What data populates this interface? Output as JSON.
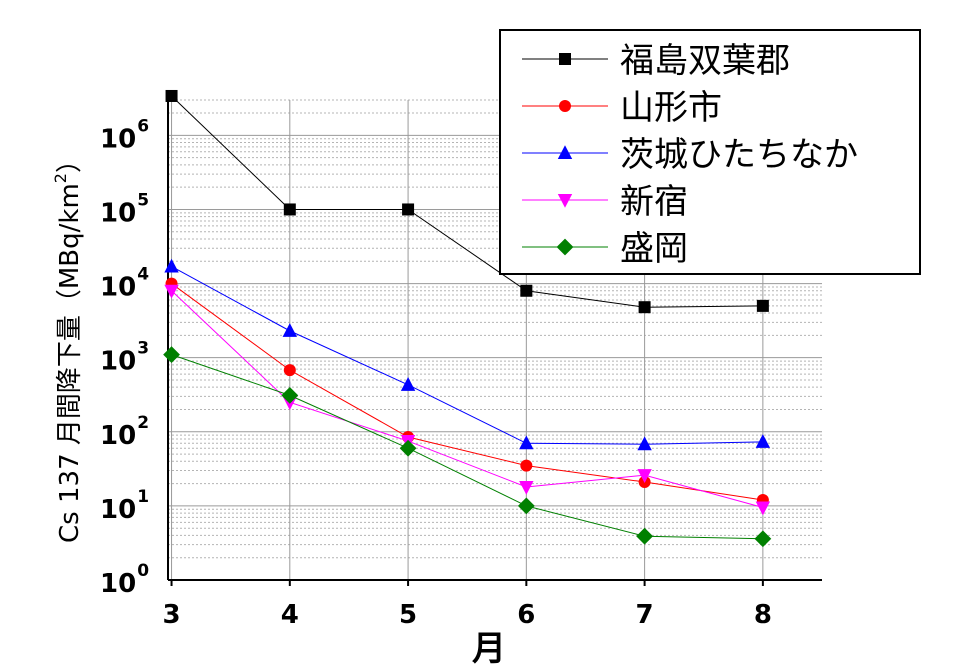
{
  "chart_data": {
    "type": "line",
    "xlabel": "月",
    "ylabel": "Cs 137 月間降下量",
    "ylabel_unit": "（MBq/km",
    "ylabel_unit_sup": "2",
    "ylabel_unit_close": "）",
    "yscale": "log",
    "ylim": [
      1,
      3000000
    ],
    "xlim": [
      2.97,
      8.5
    ],
    "x_ticks": [
      3,
      4,
      5,
      6,
      7,
      8
    ],
    "y_ticks": [
      {
        "base": "10",
        "exp": "0",
        "value": 1
      },
      {
        "base": "10",
        "exp": "1",
        "value": 10
      },
      {
        "base": "10",
        "exp": "2",
        "value": 100
      },
      {
        "base": "10",
        "exp": "3",
        "value": 1000
      },
      {
        "base": "10",
        "exp": "4",
        "value": 10000
      },
      {
        "base": "10",
        "exp": "5",
        "value": 100000
      },
      {
        "base": "10",
        "exp": "6",
        "value": 1000000
      }
    ],
    "grid": true,
    "legend_position": "top-right",
    "series": [
      {
        "name": "福島双葉郡",
        "color": "#000000",
        "marker": "square",
        "x": [
          3,
          4,
          5,
          6,
          7,
          8
        ],
        "values": [
          3400000,
          100000,
          100000,
          8000,
          4800,
          5000
        ]
      },
      {
        "name": "山形市",
        "color": "#ff0000",
        "marker": "circle",
        "x": [
          3,
          4,
          5,
          6,
          7,
          8
        ],
        "values": [
          10000,
          680,
          85,
          35,
          21,
          12
        ]
      },
      {
        "name": "茨城ひたちなか",
        "color": "#0000ff",
        "marker": "triangle-up",
        "x": [
          3,
          4,
          5,
          6,
          7,
          8
        ],
        "values": [
          17000,
          2300,
          430,
          70,
          68,
          73
        ]
      },
      {
        "name": "新宿",
        "color": "#ff00ff",
        "marker": "triangle-down",
        "x": [
          3,
          4,
          5,
          6,
          7,
          8
        ],
        "values": [
          8000,
          250,
          75,
          18,
          26,
          9.5
        ]
      },
      {
        "name": "盛岡",
        "color": "#008000",
        "marker": "diamond",
        "x": [
          3,
          4,
          5,
          6,
          7,
          8
        ],
        "values": [
          1100,
          310,
          60,
          10,
          3.9,
          3.6
        ]
      }
    ]
  }
}
